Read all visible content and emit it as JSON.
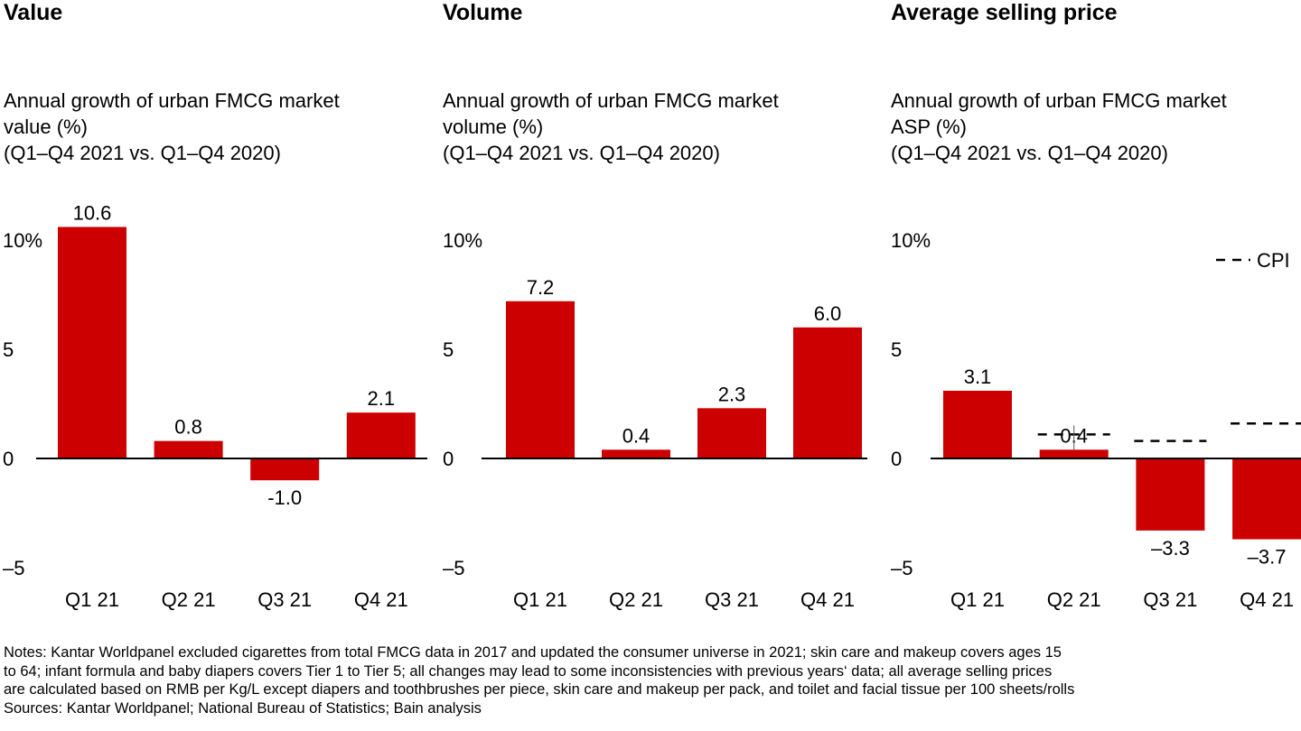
{
  "notes": {
    "lines": [
      "Notes: Kantar Worldpanel excluded cigarettes from total FMCG data in 2017 and updated the consumer universe in 2021; skin care and makeup covers ages 15",
      "to 64; infant formula and baby diapers covers Tier 1 to Tier 5; all changes may lead to some inconsistencies with previous years‘ data; all average selling prices",
      "are calculated based on RMB per Kg/L except diapers and toothbrushes per piece, skin care and makeup per pack, and toilet and facial tissue per 100 sheets/rolls"
    ],
    "sources": "Sources: Kantar Worldpanel; National Bureau of Statistics; Bain analysis"
  },
  "colors": {
    "bar": "#cc0000",
    "axis": "#000000",
    "cpi_line": "#000000"
  },
  "chart_data": [
    {
      "type": "bar",
      "title": "Value",
      "subtitle": "Annual growth of urban FMCG market\nvalue (%)\n(Q1–Q4 2021 vs. Q1–Q4 2020)",
      "categories": [
        "Q1 21",
        "Q2 21",
        "Q3 21",
        "Q4 21"
      ],
      "values": [
        10.6,
        0.8,
        -1.0,
        2.1
      ],
      "value_labels": [
        "10.6",
        "0.8",
        "-1.0",
        "2.1"
      ],
      "ylim": [
        -5,
        10
      ],
      "yticks": [
        10,
        5,
        0,
        -5
      ],
      "ytick_labels": [
        "10%",
        "5",
        "0",
        "–5"
      ],
      "grid": false
    },
    {
      "type": "bar",
      "title": "Volume",
      "subtitle": "Annual growth of urban FMCG market\nvolume (%)\n(Q1–Q4 2021 vs. Q1–Q4 2020)",
      "categories": [
        "Q1 21",
        "Q2 21",
        "Q3 21",
        "Q4 21"
      ],
      "values": [
        7.2,
        0.4,
        2.3,
        6.0
      ],
      "value_labels": [
        "7.2",
        "0.4",
        "2.3",
        "6.0"
      ],
      "ylim": [
        -5,
        10
      ],
      "yticks": [
        10,
        5,
        0,
        -5
      ],
      "ytick_labels": [
        "10%",
        "5",
        "0",
        "–5"
      ],
      "grid": false
    },
    {
      "type": "bar",
      "title": "Average selling price",
      "subtitle": "Annual growth of urban FMCG market\nASP (%)\n(Q1–Q4 2021 vs. Q1–Q4 2020)",
      "categories": [
        "Q1 21",
        "Q2 21",
        "Q3 21",
        "Q4 21"
      ],
      "values": [
        3.1,
        0.4,
        -3.3,
        -3.7
      ],
      "value_labels": [
        "3.1",
        "0.4",
        "–3.3",
        "–3.7"
      ],
      "ylim": [
        -5,
        10
      ],
      "yticks": [
        10,
        5,
        0,
        -5
      ],
      "ytick_labels": [
        "10%",
        "5",
        "0",
        "–5"
      ],
      "reference_series": {
        "name": "CPI",
        "values": [
          null,
          1.1,
          0.8,
          1.6
        ]
      },
      "legend": {
        "position": "top-right",
        "label": "CPI"
      },
      "grid": false
    }
  ]
}
